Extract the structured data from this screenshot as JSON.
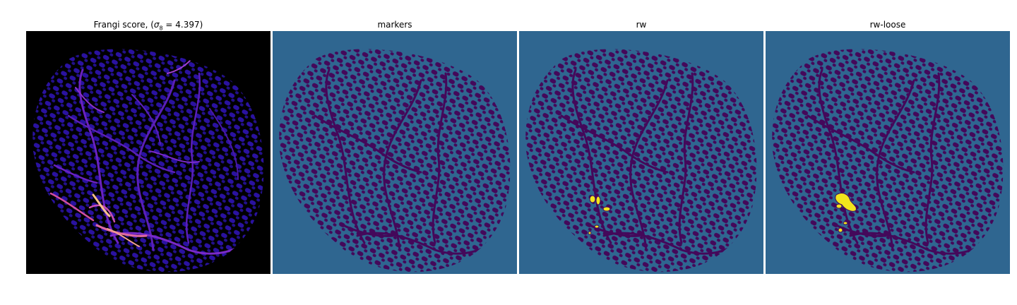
{
  "figure": {
    "panels": [
      {
        "id": "frangi",
        "title_prefix": "Frangi score, (",
        "title_sigma": "σ",
        "title_sub": "8",
        "title_suffix": " = 4.397)",
        "image_description_colormap": "magma",
        "background": "#000000",
        "blob_color": "#2a0f8f",
        "vessel_colors": [
          "#5a1fb8",
          "#a23fd0",
          "#e06aa0",
          "#f7c08a"
        ]
      },
      {
        "id": "markers",
        "title": "markers",
        "background": "#2f6690",
        "blob_color": "#44085a",
        "highlight_color": null
      },
      {
        "id": "rw",
        "title": "rw",
        "background": "#2f6690",
        "blob_color": "#44085a",
        "highlight_color": "#f1e51d"
      },
      {
        "id": "rw-loose",
        "title": "rw-loose",
        "background": "#2f6690",
        "blob_color": "#44085a",
        "highlight_color": "#f1e51d"
      }
    ]
  }
}
